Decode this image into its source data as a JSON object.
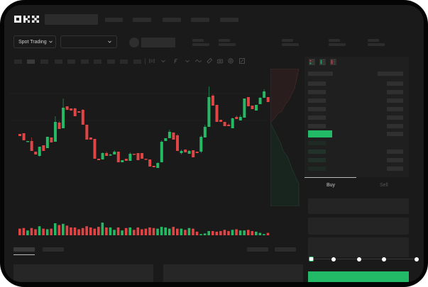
{
  "header": {
    "logo": "OKX"
  },
  "market_bar": {
    "mode_select": "Spot Trading",
    "pair_select": ""
  },
  "order_panel": {
    "tabs": [
      {
        "label": "Buy",
        "active": true
      },
      {
        "label": "Sell",
        "active": false
      }
    ],
    "leverage_fraction": 0
  },
  "colors": {
    "up": "#25b865",
    "down": "#e04545",
    "background": "#1a1a1a",
    "accent": "#22b967"
  },
  "icons": [
    "chevron-down-icon",
    "line-icon",
    "ruler-icon",
    "camera-icon",
    "settings-icon",
    "fullscreen-icon",
    "orderbook-both-icon",
    "orderbook-bids-icon",
    "orderbook-asks-icon"
  ],
  "chart_data": {
    "type": "candlestick",
    "candles": [
      [
        118,
        118,
        115,
        115
      ],
      [
        119,
        119,
        109,
        109
      ],
      [
        107,
        108,
        107,
        108
      ],
      [
        108,
        113,
        94,
        94
      ],
      [
        93,
        93,
        89,
        89
      ],
      [
        87,
        100,
        86,
        100
      ],
      [
        102,
        102,
        94,
        94
      ],
      [
        98,
        114,
        98,
        114
      ],
      [
        113,
        113,
        106,
        106
      ],
      [
        107,
        143,
        107,
        135
      ],
      [
        134,
        136,
        125,
        125
      ],
      [
        126,
        168,
        126,
        155
      ],
      [
        157,
        157,
        152,
        152
      ],
      [
        154,
        154,
        151,
        151
      ],
      [
        154,
        155,
        143,
        143
      ],
      [
        150,
        150,
        148,
        148
      ],
      [
        152,
        153,
        131,
        131
      ],
      [
        131,
        131,
        110,
        110
      ],
      [
        113,
        113,
        110,
        110
      ],
      [
        111,
        111,
        83,
        83
      ],
      [
        83,
        83,
        81,
        81
      ],
      [
        82,
        92,
        82,
        91
      ],
      [
        91,
        93,
        87,
        87
      ],
      [
        88,
        90,
        87,
        89
      ],
      [
        89,
        95,
        89,
        93
      ],
      [
        93,
        93,
        78,
        78
      ],
      [
        78,
        81,
        78,
        81
      ],
      [
        83,
        83,
        80,
        80
      ],
      [
        80,
        92,
        80,
        90
      ],
      [
        90,
        90,
        89,
        89
      ],
      [
        91,
        91,
        81,
        81
      ],
      [
        91,
        91,
        83,
        83
      ],
      [
        83,
        83,
        82,
        82
      ],
      [
        82,
        82,
        72,
        72
      ],
      [
        73,
        73,
        71,
        71
      ],
      [
        70,
        78,
        70,
        77
      ],
      [
        78,
        109,
        78,
        107
      ],
      [
        108,
        112,
        108,
        112
      ],
      [
        112,
        124,
        112,
        121
      ],
      [
        120,
        120,
        110,
        110
      ],
      [
        116,
        118,
        94,
        94
      ],
      [
        91,
        96,
        89,
        94
      ],
      [
        96,
        96,
        92,
        92
      ],
      [
        90,
        95,
        90,
        94
      ],
      [
        95,
        95,
        85,
        85
      ],
      [
        93,
        93,
        91,
        91
      ],
      [
        93,
        116,
        91,
        114
      ],
      [
        113,
        131,
        113,
        128
      ],
      [
        128,
        185,
        128,
        170
      ],
      [
        172,
        174,
        158,
        158
      ],
      [
        159,
        159,
        135,
        135
      ],
      [
        138,
        138,
        135,
        135
      ],
      [
        135,
        135,
        129,
        129
      ],
      [
        131,
        133,
        129,
        129
      ],
      [
        126,
        141,
        126,
        140
      ],
      [
        142,
        144,
        139,
        139
      ],
      [
        137,
        145,
        137,
        142
      ],
      [
        141,
        168,
        141,
        168
      ],
      [
        170,
        170,
        157,
        157
      ],
      [
        158,
        158,
        153,
        153
      ],
      [
        151,
        159,
        151,
        159
      ],
      [
        160,
        170,
        160,
        169
      ],
      [
        169,
        181,
        169,
        178
      ],
      [
        170,
        170,
        163,
        163
      ]
    ],
    "volumes": [
      11,
      12,
      8,
      12,
      10,
      15,
      11,
      10,
      11,
      20,
      17,
      19,
      16,
      13,
      13,
      10,
      12,
      15,
      13,
      11,
      14,
      21,
      13,
      13,
      9,
      13,
      8,
      12,
      13,
      9,
      13,
      10,
      11,
      13,
      12,
      11,
      14,
      13,
      11,
      14,
      11,
      11,
      9,
      12,
      11,
      6,
      2,
      3,
      7,
      7,
      6,
      7,
      9,
      7,
      9,
      10,
      8,
      8,
      9,
      7,
      6,
      4,
      2,
      4
    ],
    "depth": {
      "asks": "top",
      "bids": "bottom"
    }
  }
}
